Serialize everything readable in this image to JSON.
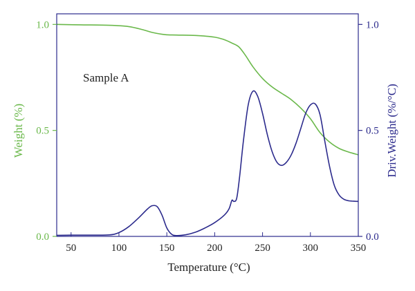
{
  "chart_data": {
    "type": "line",
    "xlabel": "Temperature (°C)",
    "ylabel_left": "Weight (%)",
    "ylabel_right": "Driv.Weight (%/°C)",
    "xlim": [
      35,
      350
    ],
    "ylim_left": [
      0,
      1.05
    ],
    "ylim_right": [
      0,
      1.05
    ],
    "x_ticks": [
      50,
      100,
      150,
      200,
      250,
      300,
      350
    ],
    "y_ticks_left": [
      0.0,
      0.5,
      1.0
    ],
    "y_ticks_right": [
      0.0,
      0.5,
      1.0
    ],
    "x_tick_labels": [
      "50",
      "100",
      "150",
      "200",
      "250",
      "300",
      "350"
    ],
    "y_tick_labels_left": [
      "0.0",
      "0.5",
      "1.0"
    ],
    "y_tick_labels_right": [
      "0.0",
      "0.5",
      "1.0"
    ],
    "annotation": "Sample A",
    "grid": false,
    "colors": {
      "weight": "#6ab84a",
      "derivative": "#2b2a8c",
      "frame": "#2b2a8c",
      "left_axis_text": "#6ab84a",
      "right_axis_text": "#2b2a8c",
      "x_axis_text": "#222222"
    },
    "series": [
      {
        "axis": "left",
        "x": [
          35,
          60,
          90,
          110,
          125,
          135,
          148,
          160,
          180,
          200,
          210,
          218,
          225,
          232,
          240,
          250,
          260,
          270,
          280,
          290,
          300,
          310,
          320,
          330,
          340,
          350
        ],
        "y": [
          1.0,
          0.998,
          0.996,
          0.99,
          0.975,
          0.962,
          0.952,
          0.95,
          0.948,
          0.94,
          0.928,
          0.912,
          0.895,
          0.855,
          0.8,
          0.745,
          0.705,
          0.675,
          0.645,
          0.605,
          0.555,
          0.49,
          0.445,
          0.415,
          0.398,
          0.385
        ]
      },
      {
        "axis": "right",
        "x": [
          35,
          50,
          70,
          90,
          100,
          110,
          120,
          130,
          135,
          140,
          145,
          150,
          155,
          160,
          170,
          180,
          190,
          200,
          210,
          215,
          218,
          220,
          223,
          226,
          230,
          235,
          240,
          245,
          250,
          255,
          260,
          265,
          270,
          275,
          280,
          285,
          290,
          295,
          300,
          305,
          310,
          315,
          320,
          325,
          330,
          335,
          340,
          345,
          350
        ],
        "y": [
          0.005,
          0.006,
          0.006,
          0.007,
          0.018,
          0.045,
          0.085,
          0.13,
          0.145,
          0.14,
          0.1,
          0.04,
          0.01,
          0.004,
          0.008,
          0.02,
          0.04,
          0.065,
          0.1,
          0.13,
          0.17,
          0.165,
          0.18,
          0.28,
          0.45,
          0.62,
          0.685,
          0.66,
          0.58,
          0.48,
          0.4,
          0.35,
          0.335,
          0.35,
          0.385,
          0.44,
          0.51,
          0.58,
          0.62,
          0.625,
          0.575,
          0.45,
          0.33,
          0.24,
          0.195,
          0.175,
          0.168,
          0.166,
          0.165
        ]
      }
    ]
  }
}
